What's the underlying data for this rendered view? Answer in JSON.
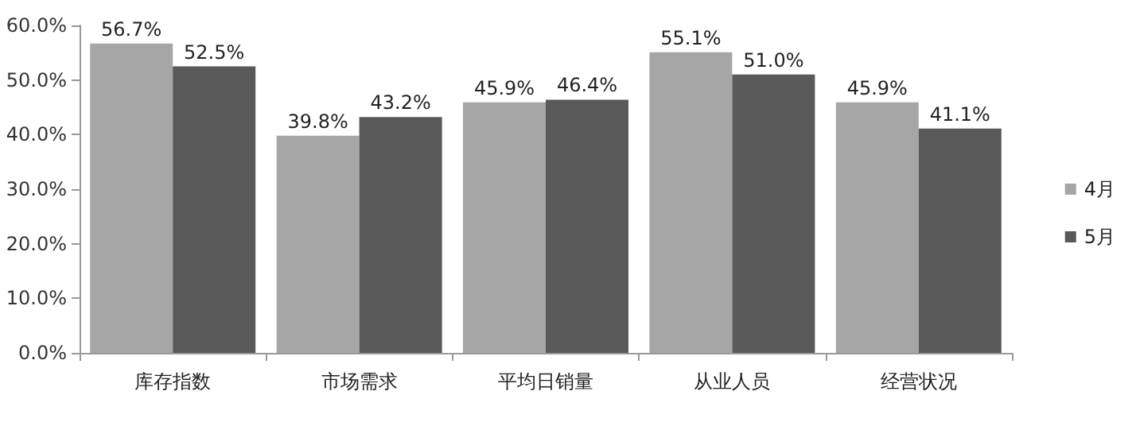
{
  "chart_data": {
    "type": "bar",
    "categories": [
      "库存指数",
      "市场需求",
      "平均日销量",
      "从业人员",
      "经营状况"
    ],
    "series": [
      {
        "name": "4月",
        "color": "#a6a6a6",
        "values": [
          56.7,
          39.8,
          45.9,
          55.1,
          45.9
        ],
        "value_labels": [
          "56.7%",
          "39.8%",
          "45.9%",
          "55.1%",
          "45.9%"
        ]
      },
      {
        "name": "5月",
        "color": "#595959",
        "values": [
          52.5,
          43.2,
          46.4,
          51.0,
          41.1
        ],
        "value_labels": [
          "52.5%",
          "43.2%",
          "46.4%",
          "51.0%",
          "41.1%"
        ]
      }
    ],
    "ylim": [
      0,
      60
    ],
    "yticks": [
      {
        "value": 0,
        "label": "0.0%"
      },
      {
        "value": 10,
        "label": "10.0%"
      },
      {
        "value": 20,
        "label": "20.0%"
      },
      {
        "value": 30,
        "label": "30.0%"
      },
      {
        "value": 40,
        "label": "40.0%"
      },
      {
        "value": 50,
        "label": "50.0%"
      },
      {
        "value": 60,
        "label": "60.0%"
      }
    ],
    "grid": false,
    "legend": "right"
  }
}
